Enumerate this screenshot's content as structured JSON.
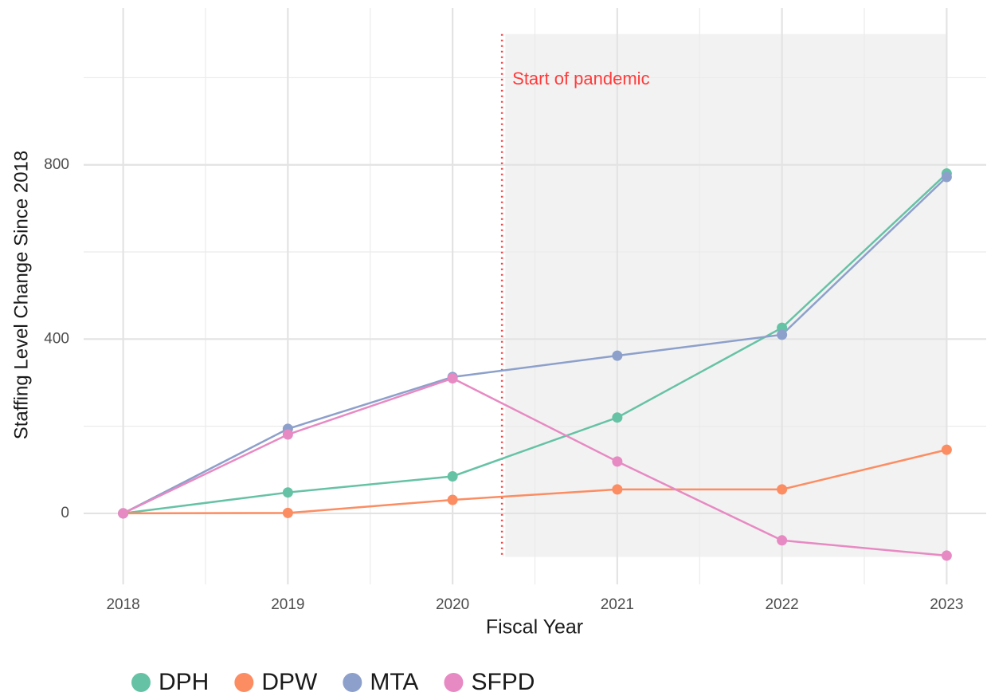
{
  "chart_data": {
    "type": "line",
    "x_label": "Fiscal Year",
    "y_label": "Staffing Level Change Since 2018",
    "x": [
      2018,
      2019,
      2020,
      2021,
      2022,
      2023
    ],
    "series": [
      {
        "name": "DPH",
        "color": "#66c2a5",
        "values": [
          0,
          48,
          85,
          220,
          426,
          780
        ]
      },
      {
        "name": "DPW",
        "color": "#fc8d62",
        "values": [
          0,
          1,
          31,
          55,
          55,
          146
        ]
      },
      {
        "name": "MTA",
        "color": "#8da0cb",
        "values": [
          0,
          194,
          313,
          362,
          410,
          772
        ]
      },
      {
        "name": "SFPD",
        "color": "#e78ac3",
        "values": [
          0,
          181,
          310,
          119,
          -62,
          -97
        ]
      }
    ],
    "xlim": [
      2017.76,
      2023.24
    ],
    "ylim": [
      -163,
      1160
    ],
    "xticks": [
      2018,
      2019,
      2020,
      2021,
      2022,
      2023
    ],
    "yticks": [
      0,
      400,
      800
    ],
    "x_minor_grid": [
      2018.5,
      2019.5,
      2020.5,
      2021.5,
      2022.5
    ],
    "y_minor_grid": [
      200,
      600,
      1000
    ],
    "grid": true,
    "legend": "bottom",
    "annotation": {
      "text": "Start of pandemic",
      "x": 2020.3,
      "color": "#ff3b3b"
    },
    "shade": {
      "xmin": 2020.32,
      "xmax": 2023,
      "ymin": -100,
      "ymax": 1100,
      "color": "#f2f2f2"
    }
  }
}
